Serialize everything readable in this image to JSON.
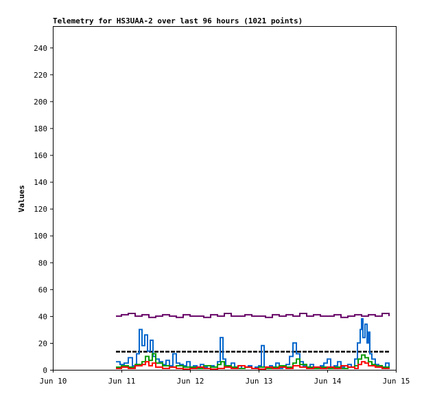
{
  "chart_data": {
    "type": "line",
    "title": "Telemetry for HS3UAA-2 over last 96 hours (1021 points)",
    "xlabel": "",
    "ylabel": "Values",
    "ylim": [
      0,
      256
    ],
    "xlim": [
      0,
      5
    ],
    "yticks": [
      0,
      20,
      40,
      60,
      80,
      100,
      120,
      140,
      160,
      180,
      200,
      220,
      240
    ],
    "xticks": [
      {
        "x": 0,
        "label": "Jun 10"
      },
      {
        "x": 1,
        "label": "Jun 11"
      },
      {
        "x": 2,
        "label": "Jun 12"
      },
      {
        "x": 3,
        "label": "Jun 13"
      },
      {
        "x": 4,
        "label": "Jun 14"
      },
      {
        "x": 5,
        "label": "Jun 15"
      }
    ],
    "grid": false,
    "legend": "none",
    "colors": {
      "purple": "#660066",
      "black": "#000000",
      "blue": "#0066cc",
      "green": "#009900",
      "red": "#ff0000"
    },
    "series": [
      {
        "color": "#660066",
        "x": [
          0.92,
          1.0,
          1.1,
          1.2,
          1.3,
          1.4,
          1.5,
          1.6,
          1.7,
          1.8,
          1.9,
          2.0,
          2.1,
          2.2,
          2.3,
          2.4,
          2.5,
          2.6,
          2.7,
          2.8,
          2.9,
          3.0,
          3.1,
          3.2,
          3.3,
          3.4,
          3.5,
          3.6,
          3.7,
          3.8,
          3.9,
          4.0,
          4.1,
          4.2,
          4.3,
          4.4,
          4.5,
          4.6,
          4.7,
          4.8,
          4.9
        ],
        "y": [
          40,
          41,
          42,
          40,
          41,
          39,
          40,
          41,
          40,
          39,
          41,
          40,
          40,
          39,
          41,
          40,
          42,
          40,
          40,
          41,
          40,
          40,
          39,
          41,
          40,
          41,
          40,
          42,
          40,
          41,
          40,
          40,
          41,
          39,
          40,
          41,
          40,
          41,
          40,
          42,
          40
        ]
      },
      {
        "color": "#000000",
        "x": [
          0.92,
          1.2,
          1.5,
          1.8,
          2.1,
          2.4,
          2.7,
          3.0,
          3.3,
          3.6,
          3.9,
          4.2,
          4.5,
          4.9
        ],
        "y": [
          13.5,
          13.5,
          13.5,
          13.5,
          13.5,
          13.5,
          13.5,
          13.5,
          13.5,
          13.5,
          13.5,
          13.5,
          13.5,
          13.5
        ]
      },
      {
        "color": "#0066cc",
        "x": [
          0.92,
          0.98,
          1.04,
          1.1,
          1.16,
          1.22,
          1.26,
          1.3,
          1.34,
          1.38,
          1.42,
          1.46,
          1.5,
          1.55,
          1.6,
          1.65,
          1.7,
          1.75,
          1.8,
          1.85,
          1.9,
          1.95,
          2.0,
          2.05,
          2.1,
          2.15,
          2.2,
          2.25,
          2.3,
          2.35,
          2.4,
          2.44,
          2.48,
          2.52,
          2.56,
          2.6,
          2.65,
          2.7,
          2.75,
          2.8,
          2.85,
          2.9,
          2.95,
          3.0,
          3.04,
          3.08,
          3.12,
          3.16,
          3.2,
          3.25,
          3.3,
          3.35,
          3.4,
          3.45,
          3.5,
          3.55,
          3.6,
          3.65,
          3.7,
          3.75,
          3.8,
          3.85,
          3.9,
          3.95,
          4.0,
          4.05,
          4.1,
          4.15,
          4.2,
          4.25,
          4.3,
          4.35,
          4.4,
          4.44,
          4.48,
          4.5,
          4.52,
          4.55,
          4.58,
          4.6,
          4.62,
          4.65,
          4.7,
          4.75,
          4.8,
          4.85,
          4.9
        ],
        "y": [
          6,
          4,
          5,
          9,
          3,
          12,
          30,
          18,
          26,
          14,
          22,
          10,
          8,
          6,
          4,
          7,
          3,
          12,
          5,
          4,
          3,
          6,
          2,
          3,
          2,
          4,
          2,
          1,
          3,
          2,
          6,
          24,
          8,
          3,
          2,
          5,
          2,
          3,
          1,
          2,
          3,
          1,
          2,
          3,
          18,
          2,
          1,
          3,
          2,
          5,
          1,
          2,
          4,
          10,
          20,
          12,
          6,
          3,
          2,
          4,
          1,
          2,
          3,
          5,
          8,
          2,
          3,
          6,
          2,
          1,
          4,
          2,
          8,
          20,
          30,
          38,
          24,
          34,
          20,
          28,
          12,
          8,
          4,
          3,
          2,
          5,
          2
        ]
      },
      {
        "color": "#009900",
        "x": [
          0.92,
          1.0,
          1.1,
          1.2,
          1.3,
          1.35,
          1.4,
          1.45,
          1.5,
          1.6,
          1.7,
          1.8,
          1.9,
          2.0,
          2.1,
          2.2,
          2.3,
          2.4,
          2.45,
          2.5,
          2.6,
          2.7,
          2.8,
          2.9,
          3.0,
          3.1,
          3.2,
          3.3,
          3.4,
          3.5,
          3.55,
          3.6,
          3.7,
          3.8,
          3.9,
          4.0,
          4.1,
          4.2,
          4.3,
          4.4,
          4.45,
          4.5,
          4.55,
          4.6,
          4.65,
          4.7,
          4.8,
          4.9
        ],
        "y": [
          2,
          3,
          2,
          4,
          6,
          10,
          7,
          12,
          5,
          3,
          2,
          3,
          2,
          2,
          1,
          3,
          2,
          4,
          6,
          3,
          2,
          1,
          2,
          1,
          2,
          1,
          2,
          3,
          2,
          5,
          8,
          4,
          2,
          1,
          2,
          1,
          2,
          1,
          2,
          3,
          8,
          11,
          9,
          6,
          4,
          3,
          2,
          1
        ]
      },
      {
        "color": "#ff0000",
        "x": [
          0.92,
          1.0,
          1.1,
          1.2,
          1.3,
          1.35,
          1.4,
          1.45,
          1.5,
          1.6,
          1.7,
          1.8,
          1.9,
          2.0,
          2.1,
          2.2,
          2.3,
          2.4,
          2.5,
          2.6,
          2.7,
          2.8,
          2.9,
          3.0,
          3.1,
          3.2,
          3.3,
          3.4,
          3.5,
          3.6,
          3.7,
          3.8,
          3.9,
          4.0,
          4.1,
          4.2,
          4.3,
          4.4,
          4.45,
          4.5,
          4.55,
          4.6,
          4.7,
          4.8,
          4.9
        ],
        "y": [
          1,
          2,
          1,
          3,
          4,
          6,
          3,
          5,
          2,
          1,
          2,
          1,
          0.5,
          1,
          2,
          1,
          0.5,
          1,
          2,
          1,
          3,
          2,
          1,
          0.5,
          2,
          1,
          2,
          1,
          3,
          2,
          1,
          2,
          1,
          2,
          1,
          3,
          2,
          1,
          4,
          6,
          5,
          3,
          2,
          1,
          0.5
        ]
      }
    ]
  }
}
